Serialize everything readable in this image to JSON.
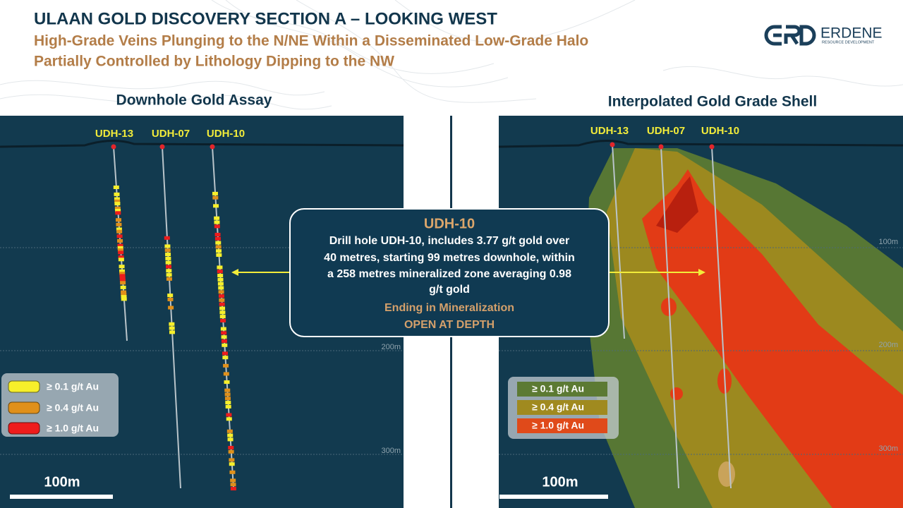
{
  "header": {
    "title": "ULAAN GOLD DISCOVERY SECTION  A – LOOKING WEST",
    "subtitle": [
      "High-Grade Veins Plunging to the N/NE Within a Disseminated Low-Grade Halo",
      "Partially Controlled by Lithology Dipping to the NW"
    ]
  },
  "logo": {
    "name": "ERDENE",
    "tagline": "RESOURCE DEVELOPMENT"
  },
  "left_panel": {
    "title": "Downhole Gold Assay",
    "holes": [
      "UDH-13",
      "UDH-07",
      "UDH-10"
    ],
    "depth_labels": [
      "200m",
      "300m"
    ],
    "legend": [
      "≥ 0.1 g/t Au",
      "≥ 0.4 g/t Au",
      "≥ 1.0 g/t Au"
    ],
    "scale": "100m"
  },
  "right_panel": {
    "title": "Interpolated Gold Grade Shell",
    "holes": [
      "UDH-13",
      "UDH-07",
      "UDH-10"
    ],
    "depth_labels": [
      "100m",
      "200m",
      "300m"
    ],
    "legend": [
      "≥ 0.1 g/t Au",
      "≥ 0.4 g/t Au",
      "≥ 1.0 g/t Au"
    ],
    "scale": "100m"
  },
  "callout": {
    "title": "UDH-10",
    "body": [
      "Drill hole UDH-10, includes 3.77 g/t gold over",
      "40 metres, starting 99 metres downhole, within",
      "a 258 metres mineralized zone averaging 0.98",
      "g/t gold"
    ],
    "note": "Ending in Mineralization",
    "status": "OPEN AT DEPTH"
  }
}
